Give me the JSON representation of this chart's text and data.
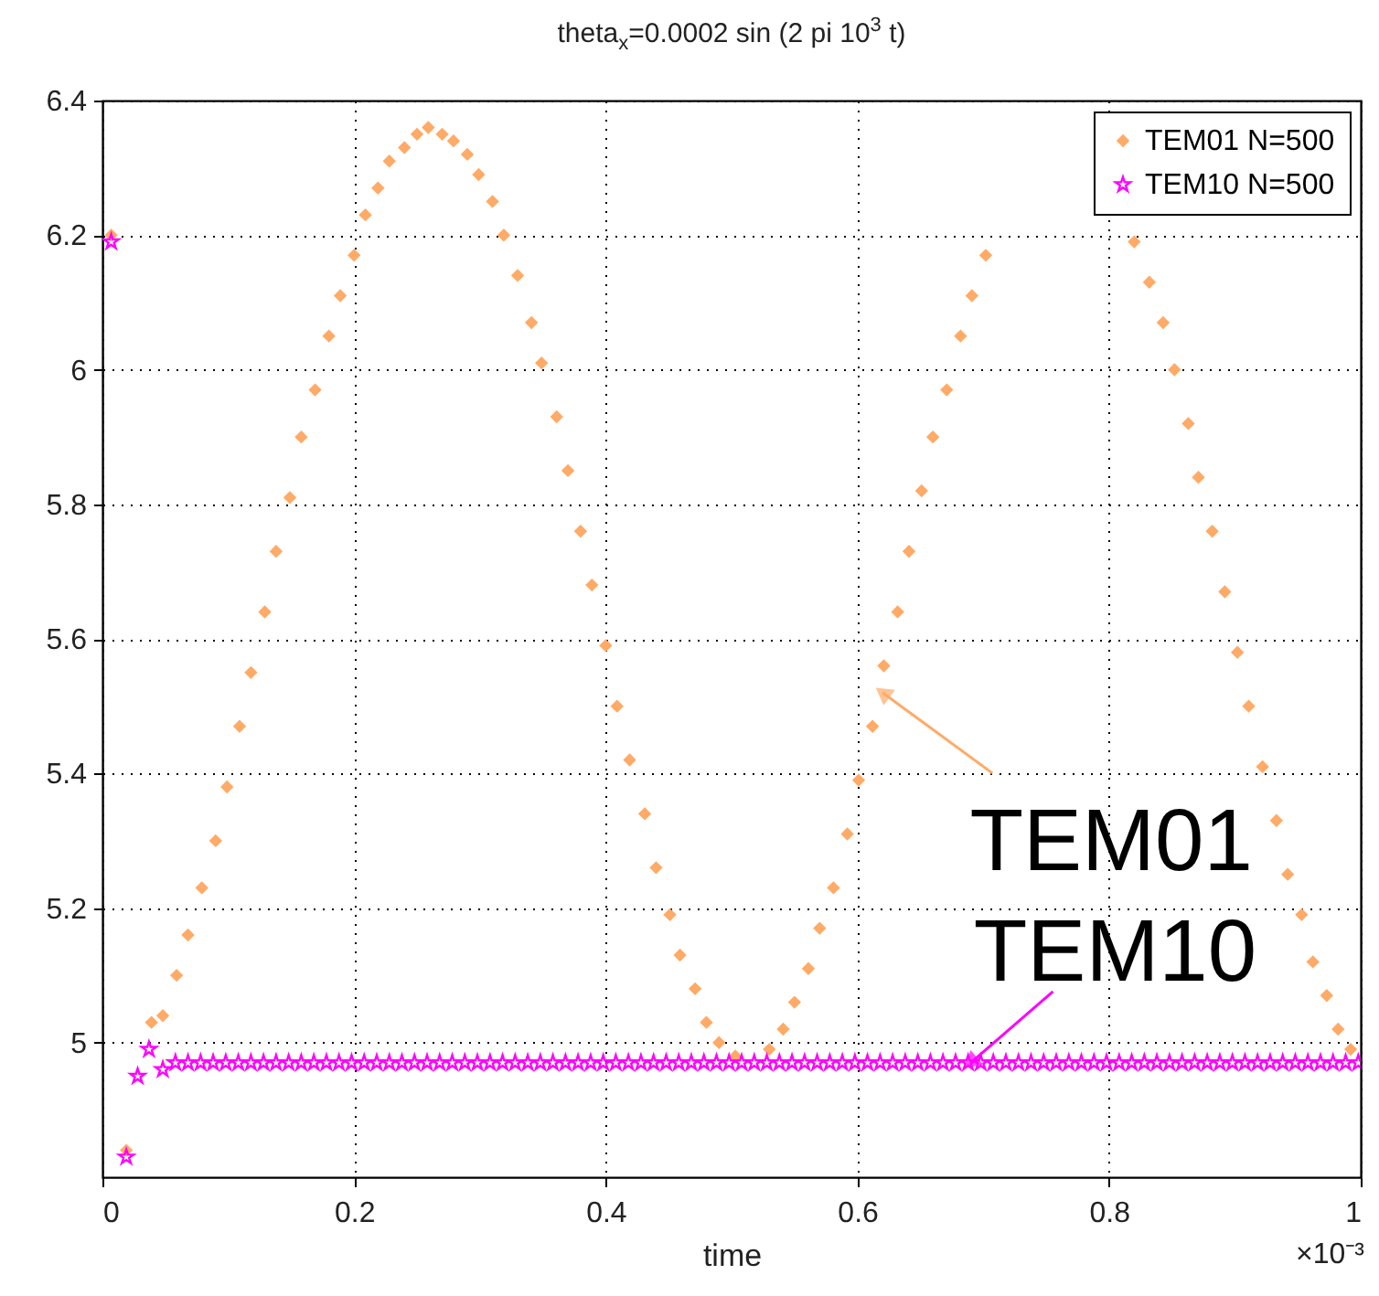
{
  "chart_data": {
    "type": "scatter",
    "title": "theta$_{x}$=0.0002 sin (2 pi 10$^{3}$ t)",
    "xlabel": "time",
    "xlim": [
      0,
      1
    ],
    "xticks": [
      0,
      0.2,
      0.4,
      0.6,
      0.8,
      1
    ],
    "ylim": [
      4.8,
      6.4
    ],
    "yticks": [
      5,
      5.2,
      5.4,
      5.6,
      5.8,
      6,
      6.2,
      6.4
    ],
    "grid": true,
    "legend": "top right",
    "annotations": [
      {
        "text": "TEM01",
        "x": 0.62,
        "y": 5.52
      },
      {
        "text": "TEM10",
        "x": 0.69,
        "y": 4.97
      },
      "×10⁻³"
    ],
    "series": [
      {
        "name": "TEM01 N=500",
        "color": "#ffaa66",
        "marker": "diamond",
        "x": [
          0.007,
          0.019,
          0.039,
          0.048,
          0.059,
          0.068,
          0.079,
          0.09,
          0.099,
          0.109,
          0.118,
          0.129,
          0.138,
          0.149,
          0.158,
          0.169,
          0.18,
          0.189,
          0.2,
          0.209,
          0.219,
          0.228,
          0.24,
          0.25,
          0.259,
          0.27,
          0.279,
          0.29,
          0.299,
          0.31,
          0.319,
          0.33,
          0.341,
          0.349,
          0.361,
          0.37,
          0.38,
          0.389,
          0.4,
          0.409,
          0.419,
          0.431,
          0.44,
          0.451,
          0.459,
          0.471,
          0.48,
          0.49,
          0.503,
          0.53,
          0.541,
          0.55,
          0.561,
          0.57,
          0.581,
          0.592,
          0.601,
          0.612,
          0.621,
          0.632,
          0.641,
          0.651,
          0.66,
          0.671,
          0.682,
          0.691,
          0.702,
          0.82,
          0.832,
          0.843,
          0.852,
          0.863,
          0.871,
          0.882,
          0.892,
          0.902,
          0.911,
          0.922,
          0.933,
          0.942,
          0.953,
          0.962,
          0.973,
          0.982,
          0.992
        ],
        "values": [
          6.2,
          4.84,
          5.03,
          5.04,
          5.1,
          5.16,
          5.23,
          5.3,
          5.38,
          5.47,
          5.55,
          5.64,
          5.73,
          5.81,
          5.9,
          5.97,
          6.05,
          6.11,
          6.17,
          6.23,
          6.27,
          6.31,
          6.33,
          6.35,
          6.36,
          6.35,
          6.34,
          6.32,
          6.29,
          6.25,
          6.2,
          6.14,
          6.07,
          6.01,
          5.93,
          5.85,
          5.76,
          5.68,
          5.59,
          5.5,
          5.42,
          5.34,
          5.26,
          5.19,
          5.13,
          5.08,
          5.03,
          5.0,
          4.98,
          4.99,
          5.02,
          5.06,
          5.11,
          5.17,
          5.23,
          5.31,
          5.39,
          5.47,
          5.56,
          5.64,
          5.73,
          5.82,
          5.9,
          5.97,
          6.05,
          6.11,
          6.17,
          6.19,
          6.13,
          6.07,
          6.0,
          5.92,
          5.84,
          5.76,
          5.67,
          5.58,
          5.5,
          5.41,
          5.33,
          5.25,
          5.19,
          5.12,
          5.07,
          5.02,
          4.99
        ]
      },
      {
        "name": "TEM10 N=500",
        "color": "#ff00ff",
        "marker": "star",
        "x": [
          0.007,
          0.019,
          0.028,
          0.037,
          0.048,
          0.058,
          0.068,
          0.078,
          0.088,
          0.098,
          0.108,
          0.118,
          0.128,
          0.138,
          0.148,
          0.158,
          0.168,
          0.178,
          0.188,
          0.198,
          0.208,
          0.218,
          0.228,
          0.238,
          0.248,
          0.258,
          0.268,
          0.278,
          0.288,
          0.298,
          0.308,
          0.318,
          0.328,
          0.338,
          0.348,
          0.358,
          0.368,
          0.378,
          0.388,
          0.398,
          0.408,
          0.418,
          0.428,
          0.438,
          0.448,
          0.458,
          0.468,
          0.478,
          0.488,
          0.498,
          0.508,
          0.518,
          0.528,
          0.538,
          0.548,
          0.558,
          0.568,
          0.578,
          0.588,
          0.598,
          0.608,
          0.618,
          0.628,
          0.638,
          0.648,
          0.658,
          0.668,
          0.678,
          0.688,
          0.698,
          0.708,
          0.718,
          0.728,
          0.738,
          0.748,
          0.758,
          0.768,
          0.778,
          0.788,
          0.798,
          0.808,
          0.818,
          0.828,
          0.838,
          0.848,
          0.858,
          0.868,
          0.878,
          0.888,
          0.898,
          0.908,
          0.918,
          0.928,
          0.938,
          0.948,
          0.958,
          0.968,
          0.978,
          0.988,
          0.998
        ],
        "values": [
          6.19,
          4.83,
          4.95,
          4.99,
          4.96,
          4.97,
          4.97,
          4.97,
          4.97,
          4.97,
          4.97,
          4.97,
          4.97,
          4.97,
          4.97,
          4.97,
          4.97,
          4.97,
          4.97,
          4.97,
          4.97,
          4.97,
          4.97,
          4.97,
          4.97,
          4.97,
          4.97,
          4.97,
          4.97,
          4.97,
          4.97,
          4.97,
          4.97,
          4.97,
          4.97,
          4.97,
          4.97,
          4.97,
          4.97,
          4.97,
          4.97,
          4.97,
          4.97,
          4.97,
          4.97,
          4.97,
          4.97,
          4.97,
          4.97,
          4.97,
          4.97,
          4.97,
          4.97,
          4.97,
          4.97,
          4.97,
          4.97,
          4.97,
          4.97,
          4.97,
          4.97,
          4.97,
          4.97,
          4.97,
          4.97,
          4.97,
          4.97,
          4.97,
          4.97,
          4.97,
          4.97,
          4.97,
          4.97,
          4.97,
          4.97,
          4.97,
          4.97,
          4.97,
          4.97,
          4.97,
          4.97,
          4.97,
          4.97,
          4.97,
          4.97,
          4.97,
          4.97,
          4.97,
          4.97,
          4.97,
          4.97,
          4.97,
          4.97,
          4.97,
          4.97,
          4.97,
          4.97,
          4.97,
          4.97,
          4.97
        ]
      }
    ]
  }
}
